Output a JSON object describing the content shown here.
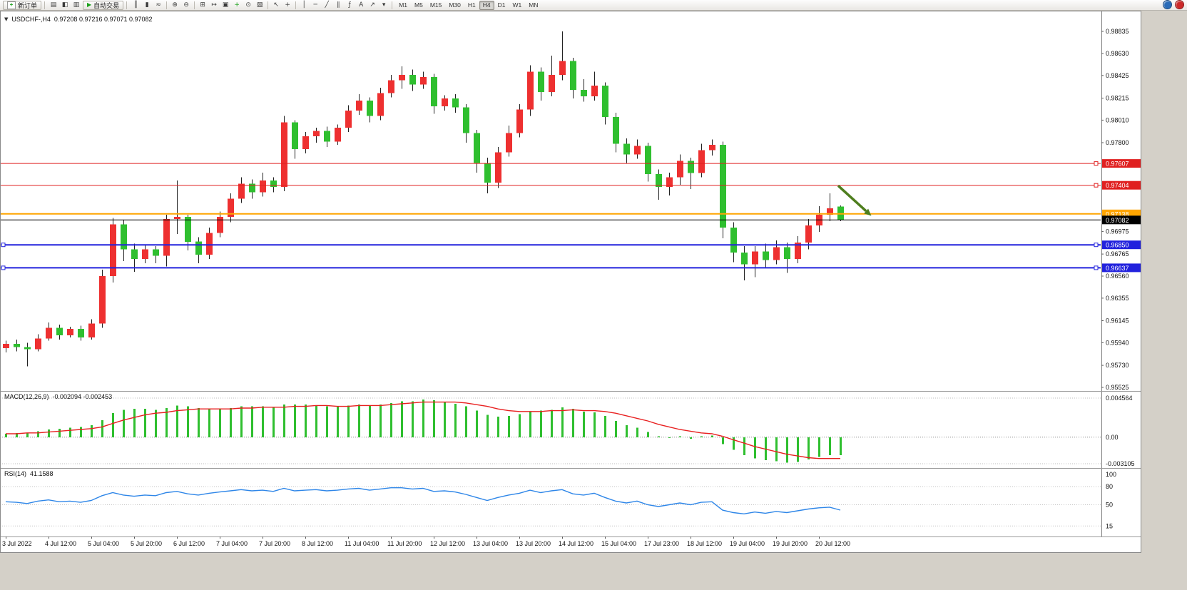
{
  "toolbar": {
    "buttons": {
      "new_order": "新订单",
      "auto_trading": "自动交易"
    },
    "left_group": [
      {
        "name": "market-watch-icon",
        "glyph": "▤"
      },
      {
        "name": "data-window-icon",
        "glyph": "◧"
      },
      {
        "name": "navigator-icon",
        "glyph": "▥"
      }
    ],
    "groups": [
      [
        {
          "name": "bar-chart-icon",
          "glyph": "║"
        },
        {
          "name": "candlestick-chart-icon",
          "glyph": "▮"
        },
        {
          "name": "line-chart-icon",
          "glyph": "≈"
        }
      ],
      [
        {
          "name": "zoom-in-icon",
          "glyph": "⊕"
        },
        {
          "name": "zoom-out-icon",
          "glyph": "⊖"
        }
      ],
      [
        {
          "name": "tile-windows-icon",
          "glyph": "⊞"
        },
        {
          "name": "auto-scroll-icon",
          "glyph": "↦"
        },
        {
          "name": "chart-shift-icon",
          "glyph": "▣"
        },
        {
          "name": "indicators-icon",
          "glyph": "+",
          "color": "#18A018"
        },
        {
          "name": "periods-icon",
          "glyph": "⊙"
        },
        {
          "name": "templates-icon",
          "glyph": "▧"
        }
      ],
      [
        {
          "name": "cursor-icon",
          "glyph": "↖"
        },
        {
          "name": "crosshair-icon",
          "glyph": "+"
        }
      ],
      [
        {
          "name": "vertical-line-icon",
          "glyph": "│"
        },
        {
          "name": "horizontal-line-icon",
          "glyph": "─"
        },
        {
          "name": "trendline-icon",
          "glyph": "╱"
        },
        {
          "name": "channel-icon",
          "glyph": "∥"
        },
        {
          "name": "fibonacci-icon",
          "glyph": "ƒ"
        },
        {
          "name": "text-icon",
          "glyph": "A"
        },
        {
          "name": "arrows-icon",
          "glyph": "↗"
        },
        {
          "name": "dropdown-caret-icon",
          "glyph": "▾"
        }
      ]
    ],
    "timeframes": {
      "options": [
        "M1",
        "M5",
        "M15",
        "M30",
        "H1",
        "H4",
        "D1",
        "W1",
        "MN"
      ],
      "active": "H4"
    },
    "right_icons": [
      {
        "name": "community-icon",
        "color": "#2B6CB8"
      },
      {
        "name": "alerts-icon",
        "color": "#CC2A2A"
      }
    ]
  },
  "chart": {
    "title_symbol": "USDCHF-,H4",
    "ohlc_text": "0.97208 0.97216 0.97071 0.97082"
  },
  "chart_data": {
    "type": "candlestick",
    "symbol": "USDCHF-",
    "timeframe": "H4",
    "ohlc_header": {
      "open": 0.97208,
      "high": 0.97216,
      "low": 0.97071,
      "close": 0.97082
    },
    "colors": {
      "bull": "#EE3030",
      "bear": "#2FBF2F",
      "wick": "#222222",
      "macd_histogram": "#2FBF2F",
      "macd_signal": "#E82020",
      "rsi_line": "#2E86E8"
    },
    "price_axis": {
      "min": 0.95525,
      "max": 0.98835,
      "ticks": [
        0.98835,
        0.9863,
        0.98425,
        0.98215,
        0.9801,
        0.978,
        0.96975,
        0.96765,
        0.9656,
        0.96355,
        0.96145,
        0.9594,
        0.9573,
        0.95525
      ]
    },
    "candles": [
      [
        0.9589,
        0.9596,
        0.9585,
        0.9593
      ],
      [
        0.9593,
        0.9597,
        0.9586,
        0.959
      ],
      [
        0.959,
        0.9594,
        0.9572,
        0.9588
      ],
      [
        0.9588,
        0.9602,
        0.9586,
        0.9598
      ],
      [
        0.9598,
        0.9613,
        0.9596,
        0.9608
      ],
      [
        0.9608,
        0.9611,
        0.9597,
        0.9601
      ],
      [
        0.9601,
        0.9609,
        0.9599,
        0.9607
      ],
      [
        0.9607,
        0.961,
        0.9596,
        0.9599
      ],
      [
        0.9599,
        0.9616,
        0.9597,
        0.9612
      ],
      [
        0.9612,
        0.9662,
        0.9608,
        0.9656
      ],
      [
        0.9656,
        0.971,
        0.965,
        0.9704
      ],
      [
        0.9704,
        0.9708,
        0.967,
        0.9681
      ],
      [
        0.9681,
        0.9686,
        0.966,
        0.9672
      ],
      [
        0.9672,
        0.9685,
        0.9668,
        0.9681
      ],
      [
        0.9681,
        0.9684,
        0.9668,
        0.9675
      ],
      [
        0.9675,
        0.9713,
        0.9665,
        0.9709
      ],
      [
        0.9709,
        0.9745,
        0.9695,
        0.9711
      ],
      [
        0.9711,
        0.9713,
        0.968,
        0.9688
      ],
      [
        0.9688,
        0.9692,
        0.9668,
        0.9676
      ],
      [
        0.9676,
        0.9701,
        0.9672,
        0.9696
      ],
      [
        0.9696,
        0.9716,
        0.9692,
        0.9711
      ],
      [
        0.9711,
        0.9733,
        0.9706,
        0.9728
      ],
      [
        0.9728,
        0.9748,
        0.9724,
        0.9742
      ],
      [
        0.9742,
        0.9746,
        0.9728,
        0.9734
      ],
      [
        0.9734,
        0.9752,
        0.973,
        0.9745
      ],
      [
        0.9745,
        0.9748,
        0.9734,
        0.9739
      ],
      [
        0.9739,
        0.9805,
        0.9735,
        0.9799
      ],
      [
        0.9799,
        0.9801,
        0.9765,
        0.9774
      ],
      [
        0.9774,
        0.979,
        0.977,
        0.9786
      ],
      [
        0.9786,
        0.9794,
        0.978,
        0.9791
      ],
      [
        0.9791,
        0.9795,
        0.9776,
        0.9781
      ],
      [
        0.9781,
        0.9797,
        0.9778,
        0.9794
      ],
      [
        0.9794,
        0.9815,
        0.979,
        0.981
      ],
      [
        0.981,
        0.9825,
        0.9806,
        0.9819
      ],
      [
        0.9819,
        0.9822,
        0.9799,
        0.9805
      ],
      [
        0.9805,
        0.9831,
        0.9801,
        0.9826
      ],
      [
        0.9826,
        0.9843,
        0.9822,
        0.9838
      ],
      [
        0.9838,
        0.9851,
        0.983,
        0.9843
      ],
      [
        0.9843,
        0.9848,
        0.9828,
        0.9834
      ],
      [
        0.9834,
        0.9846,
        0.983,
        0.9841
      ],
      [
        0.9841,
        0.9844,
        0.9807,
        0.9814
      ],
      [
        0.9814,
        0.9824,
        0.981,
        0.9821
      ],
      [
        0.9821,
        0.9825,
        0.9808,
        0.9813
      ],
      [
        0.9813,
        0.9816,
        0.978,
        0.9789
      ],
      [
        0.9789,
        0.9792,
        0.9752,
        0.9761
      ],
      [
        0.9761,
        0.9766,
        0.9733,
        0.9743
      ],
      [
        0.9743,
        0.9776,
        0.9738,
        0.9771
      ],
      [
        0.9771,
        0.9796,
        0.9767,
        0.9789
      ],
      [
        0.9789,
        0.9816,
        0.9785,
        0.9811
      ],
      [
        0.9811,
        0.9852,
        0.9805,
        0.9846
      ],
      [
        0.9846,
        0.985,
        0.9819,
        0.9827
      ],
      [
        0.9827,
        0.9861,
        0.9823,
        0.9843
      ],
      [
        0.9843,
        0.98835,
        0.9838,
        0.9856
      ],
      [
        0.9856,
        0.9859,
        0.9821,
        0.9829
      ],
      [
        0.9829,
        0.9839,
        0.9818,
        0.9823
      ],
      [
        0.9823,
        0.9846,
        0.9819,
        0.9833
      ],
      [
        0.9833,
        0.9836,
        0.9797,
        0.9804
      ],
      [
        0.9804,
        0.9808,
        0.9771,
        0.9779
      ],
      [
        0.9779,
        0.9784,
        0.9761,
        0.9769
      ],
      [
        0.9769,
        0.9783,
        0.9765,
        0.9777
      ],
      [
        0.9777,
        0.978,
        0.9744,
        0.9751
      ],
      [
        0.9751,
        0.9755,
        0.9727,
        0.9739
      ],
      [
        0.9739,
        0.9752,
        0.9731,
        0.9748
      ],
      [
        0.9748,
        0.9769,
        0.9741,
        0.9763
      ],
      [
        0.9763,
        0.9766,
        0.9737,
        0.9752
      ],
      [
        0.9752,
        0.9779,
        0.9748,
        0.9773
      ],
      [
        0.9773,
        0.9783,
        0.9768,
        0.9778
      ],
      [
        0.9778,
        0.9781,
        0.9691,
        0.9701
      ],
      [
        0.9701,
        0.9706,
        0.9669,
        0.9678
      ],
      [
        0.9678,
        0.9684,
        0.9652,
        0.9667
      ],
      [
        0.9667,
        0.9684,
        0.9655,
        0.9679
      ],
      [
        0.9679,
        0.9686,
        0.9664,
        0.9671
      ],
      [
        0.9671,
        0.9689,
        0.9667,
        0.9683
      ],
      [
        0.9683,
        0.9687,
        0.9659,
        0.9672
      ],
      [
        0.9672,
        0.9693,
        0.9668,
        0.9687
      ],
      [
        0.9687,
        0.9709,
        0.9681,
        0.9703
      ],
      [
        0.9703,
        0.9721,
        0.9697,
        0.9713
      ],
      [
        0.9713,
        0.9733,
        0.9707,
        0.9719
      ],
      [
        0.97208,
        0.97216,
        0.97071,
        0.97082
      ]
    ],
    "time_labels": [
      {
        "text": "3 Jul 2022",
        "bar": 0
      },
      {
        "text": "4 Jul 12:00",
        "bar": 4
      },
      {
        "text": "5 Jul 04:00",
        "bar": 8
      },
      {
        "text": "5 Jul 20:00",
        "bar": 12
      },
      {
        "text": "6 Jul 12:00",
        "bar": 16
      },
      {
        "text": "7 Jul 04:00",
        "bar": 20
      },
      {
        "text": "7 Jul 20:00",
        "bar": 24
      },
      {
        "text": "8 Jul 12:00",
        "bar": 28
      },
      {
        "text": "11 Jul 04:00",
        "bar": 32
      },
      {
        "text": "11 Jul 20:00",
        "bar": 36
      },
      {
        "text": "12 Jul 12:00",
        "bar": 40
      },
      {
        "text": "13 Jul 04:00",
        "bar": 44
      },
      {
        "text": "13 Jul 20:00",
        "bar": 48
      },
      {
        "text": "14 Jul 12:00",
        "bar": 52
      },
      {
        "text": "15 Jul 04:00",
        "bar": 56
      },
      {
        "text": "17 Jul 23:00",
        "bar": 60
      },
      {
        "text": "18 Jul 12:00",
        "bar": 64
      },
      {
        "text": "19 Jul 04:00",
        "bar": 68
      },
      {
        "text": "19 Jul 20:00",
        "bar": 72
      },
      {
        "text": "20 Jul 12:00",
        "bar": 76
      }
    ],
    "levels": [
      {
        "price": 0.97607,
        "label": "0.97607",
        "color": "#E02020",
        "width": 1,
        "handles": [
          1534
        ]
      },
      {
        "price": 0.97404,
        "label": "0.97404",
        "color": "#E02020",
        "width": 1,
        "handles": [
          1534
        ]
      },
      {
        "price": 0.97138,
        "label": "0.97138",
        "color": "#FFA500",
        "width": 2,
        "handles": []
      },
      {
        "price": 0.9685,
        "label": "0.96850",
        "color": "#2222DD",
        "width": 2,
        "handles": [
          2,
          1534
        ]
      },
      {
        "price": 0.96637,
        "label": "0.96637",
        "color": "#2222DD",
        "width": 2,
        "handles": [
          2,
          1534
        ]
      }
    ],
    "bid": {
      "price": 0.97082,
      "label": "0.97082",
      "color": "#000000"
    },
    "arrow": {
      "from": {
        "bar": 77.8,
        "price": 0.974
      },
      "to": {
        "bar": 80.9,
        "price": 0.9712
      },
      "color": "#4E7E1E"
    },
    "macd": {
      "label": "MACD(12,26,9)",
      "values_text": "-0.002094 -0.002453",
      "axis": {
        "max": 0.004564,
        "min": -0.003105,
        "max_label": "0.004564",
        "zero_label": "0.00",
        "min_label": "-0.003105"
      },
      "histogram": [
        0.0004,
        0.0005,
        0.0005,
        0.0007,
        0.0009,
        0.001,
        0.0011,
        0.0012,
        0.0014,
        0.002,
        0.0028,
        0.0032,
        0.0033,
        0.0033,
        0.0032,
        0.0034,
        0.0037,
        0.0036,
        0.0034,
        0.0033,
        0.0033,
        0.0034,
        0.0036,
        0.0036,
        0.0036,
        0.0035,
        0.0038,
        0.0038,
        0.0038,
        0.0037,
        0.0036,
        0.0036,
        0.0037,
        0.0038,
        0.0037,
        0.0038,
        0.004,
        0.0042,
        0.0042,
        0.0044,
        0.0043,
        0.0041,
        0.0039,
        0.0036,
        0.0031,
        0.0026,
        0.0024,
        0.0025,
        0.0027,
        0.003,
        0.0031,
        0.0032,
        0.0035,
        0.0033,
        0.003,
        0.0029,
        0.0025,
        0.0019,
        0.0014,
        0.0011,
        0.0006,
        0.0001,
        -0.0001,
        0.0001,
        -0.0002,
        0.0001,
        0.0002,
        -0.0008,
        -0.0015,
        -0.0021,
        -0.0025,
        -0.0027,
        -0.0028,
        -0.003,
        -0.0029,
        -0.0026,
        -0.0023,
        -0.0021,
        -0.0021
      ],
      "signal": [
        0.0004,
        0.0004,
        0.0005,
        0.0005,
        0.0006,
        0.0007,
        0.0008,
        0.0009,
        0.001,
        0.0012,
        0.0016,
        0.002,
        0.0023,
        0.0026,
        0.0028,
        0.0029,
        0.0031,
        0.0032,
        0.0033,
        0.0033,
        0.0033,
        0.0033,
        0.0034,
        0.0034,
        0.0035,
        0.0035,
        0.0035,
        0.0036,
        0.0036,
        0.0037,
        0.0037,
        0.0036,
        0.0036,
        0.0037,
        0.0037,
        0.0037,
        0.0038,
        0.0039,
        0.004,
        0.0041,
        0.0041,
        0.0041,
        0.0041,
        0.004,
        0.0038,
        0.0036,
        0.0033,
        0.0031,
        0.003,
        0.003,
        0.003,
        0.0031,
        0.0031,
        0.0032,
        0.0031,
        0.0031,
        0.003,
        0.0028,
        0.0025,
        0.0022,
        0.0019,
        0.0015,
        0.0012,
        0.0009,
        0.0007,
        0.0005,
        0.0004,
        0.0001,
        -0.0003,
        -0.0007,
        -0.0011,
        -0.0014,
        -0.0017,
        -0.002,
        -0.0022,
        -0.0024,
        -0.0025,
        -0.0025,
        -0.0025
      ]
    },
    "rsi": {
      "label": "RSI(14)",
      "value_text": "41.1588",
      "scale_ticks": [
        "100",
        "80",
        "50",
        "15"
      ],
      "tick_values": [
        100,
        80,
        50,
        15
      ],
      "dotted_levels": [
        80,
        50,
        15
      ],
      "values": [
        55,
        54,
        52,
        56,
        58,
        55,
        56,
        54,
        57,
        65,
        70,
        66,
        64,
        66,
        65,
        70,
        72,
        68,
        66,
        69,
        71,
        73,
        75,
        73,
        74,
        72,
        77,
        73,
        74,
        75,
        73,
        74,
        76,
        77,
        74,
        76,
        78,
        78,
        76,
        77,
        72,
        73,
        71,
        67,
        62,
        57,
        62,
        66,
        69,
        74,
        70,
        73,
        75,
        68,
        66,
        69,
        62,
        56,
        53,
        56,
        50,
        47,
        50,
        53,
        50,
        54,
        55,
        41,
        37,
        35,
        38,
        36,
        39,
        37,
        40,
        43,
        45,
        46,
        41.16
      ]
    }
  }
}
